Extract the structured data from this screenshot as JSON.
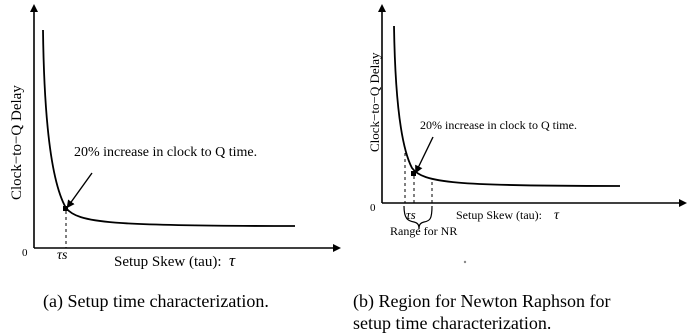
{
  "panel_a": {
    "ylabel": "Clock−to−Q Delay",
    "xlabel": "Setup Skew (tau):",
    "tau_symbol": "τ",
    "origin": "0",
    "annotation": "20% increase in clock to Q time.",
    "marker_label": "τs"
  },
  "panel_b": {
    "ylabel": "Clock−to−Q Delay",
    "xlabel": "Setup Skew (tau):",
    "tau_symbol": "τ",
    "origin": "0",
    "annotation": "20% increase in clock to Q time.",
    "marker_label": "τs",
    "range_label": "Range for NR"
  },
  "captions": {
    "a": "(a) Setup time characterization.",
    "b_line1": "(b) Region for Newton Raphson for",
    "b_line2": "setup time characterization."
  },
  "colors": {
    "ink": "#000000",
    "background": "#ffffff"
  }
}
